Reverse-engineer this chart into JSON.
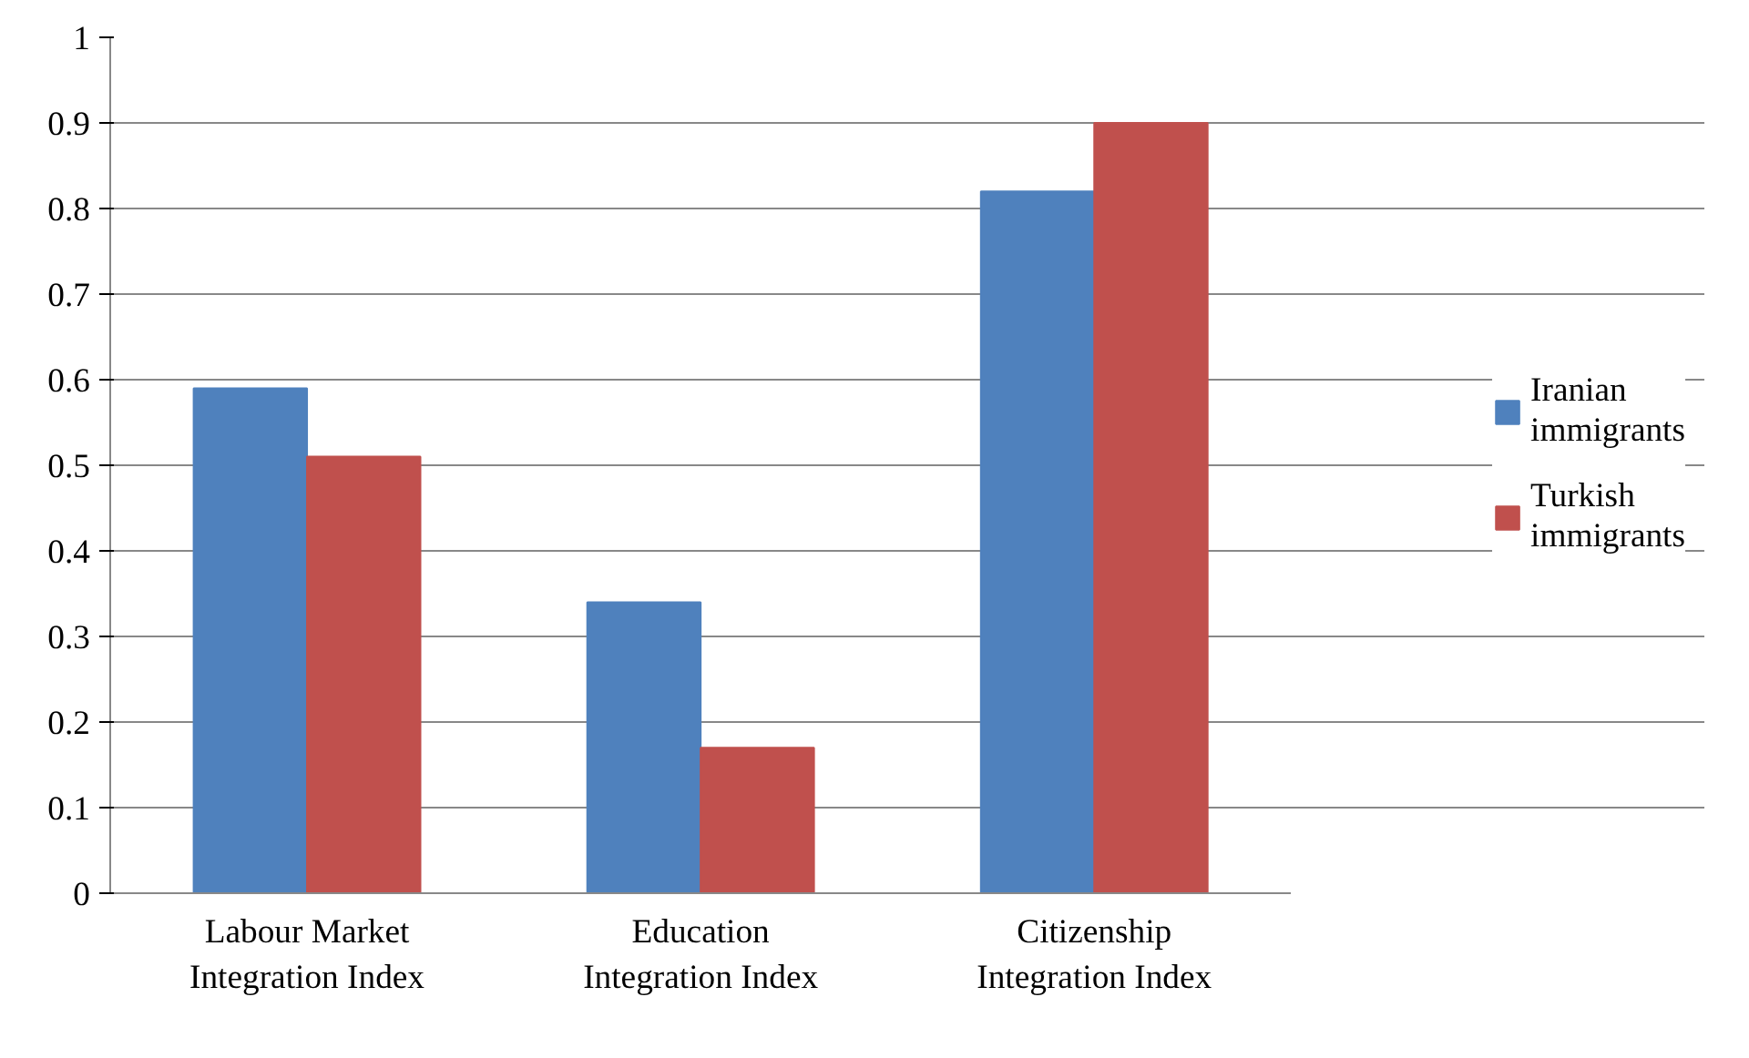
{
  "chart_data": {
    "type": "bar",
    "categories": [
      "Labour Market Integration Index",
      "Education Integration Index",
      "Citizenship Integration Index"
    ],
    "series": [
      {
        "name": "Iranian immigrants",
        "color": "#4f81bd",
        "values": [
          0.59,
          0.34,
          0.82
        ]
      },
      {
        "name": "Turkish immigrants",
        "color": "#c0504d",
        "values": [
          0.51,
          0.17,
          0.9
        ]
      }
    ],
    "ylim": [
      0,
      1
    ],
    "yticks": [
      0,
      0.1,
      0.2,
      0.3,
      0.4,
      0.5,
      0.6,
      0.7,
      0.8,
      0.9,
      1
    ],
    "grid": "y",
    "legend": "right"
  }
}
